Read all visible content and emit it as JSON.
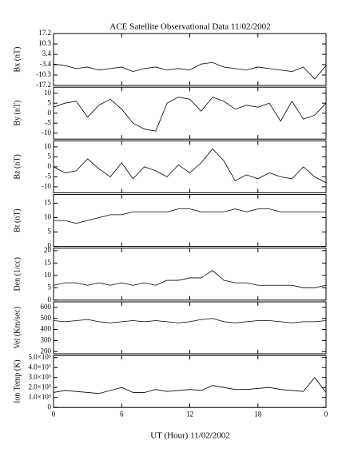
{
  "chart_data": [
    {
      "type": "line",
      "title": "ACE Satellite Observational Data   11/02/2002",
      "ylabel": "Bx (nT)",
      "color": "#000000",
      "xlim": [
        0,
        24
      ],
      "x": [
        0,
        1,
        2,
        3,
        4,
        5,
        6,
        7,
        8,
        9,
        10,
        11,
        12,
        13,
        14,
        15,
        16,
        17,
        18,
        19,
        20,
        21,
        22,
        23,
        24
      ],
      "series": [
        {
          "values": [
            -3,
            -4,
            -6,
            -5,
            -7,
            -6,
            -5,
            -8,
            -6,
            -5,
            -7,
            -6,
            -7,
            -3,
            -2,
            -5,
            -6,
            -7,
            -5,
            -6,
            -7,
            -8,
            -5,
            -13,
            -4
          ]
        }
      ],
      "ylim": [
        -17.2,
        17.2
      ],
      "yticks": [
        -17.2,
        -10.3,
        -3.4,
        3.4,
        10.3,
        17.2
      ]
    },
    {
      "type": "line",
      "ylabel": "By (nT)",
      "color": "#000000",
      "xlim": [
        0,
        24
      ],
      "x": [
        0,
        1,
        2,
        3,
        4,
        5,
        6,
        7,
        8,
        9,
        10,
        11,
        12,
        13,
        14,
        15,
        16,
        17,
        18,
        19,
        20,
        21,
        22,
        23,
        24
      ],
      "series": [
        {
          "values": [
            3,
            5,
            6,
            -2,
            4,
            7,
            2,
            -5,
            -8,
            -9,
            5,
            8,
            7,
            1,
            8,
            6,
            2,
            4,
            3,
            5,
            -4,
            6,
            -3,
            -1,
            5
          ]
        }
      ],
      "ylim": [
        -13,
        13
      ],
      "yticks": [
        -10,
        -5,
        0,
        5,
        10
      ]
    },
    {
      "type": "line",
      "ylabel": "Bz (nT)",
      "color": "#000000",
      "xlim": [
        0,
        24
      ],
      "x": [
        0,
        1,
        2,
        3,
        4,
        5,
        6,
        7,
        8,
        9,
        10,
        11,
        12,
        13,
        14,
        15,
        16,
        17,
        18,
        19,
        20,
        21,
        22,
        23,
        24
      ],
      "series": [
        {
          "values": [
            0,
            -3,
            -2,
            4,
            -1,
            -5,
            2,
            -6,
            0,
            -2,
            -5,
            1,
            -3,
            2,
            9,
            3,
            -7,
            -4,
            -6,
            -3,
            -5,
            -6,
            0,
            -5,
            -8
          ]
        }
      ],
      "ylim": [
        -13,
        13
      ],
      "yticks": [
        -10,
        -5,
        0,
        5,
        10
      ]
    },
    {
      "type": "line",
      "ylabel": "Bt (nT)",
      "color": "#000000",
      "xlim": [
        0,
        24
      ],
      "x": [
        0,
        1,
        2,
        3,
        4,
        5,
        6,
        7,
        8,
        9,
        10,
        11,
        12,
        13,
        14,
        15,
        16,
        17,
        18,
        19,
        20,
        21,
        22,
        23,
        24
      ],
      "series": [
        {
          "values": [
            9,
            9,
            8,
            9,
            10,
            11,
            11,
            12,
            12,
            12,
            12,
            13,
            13,
            12,
            12,
            12,
            13,
            12,
            13,
            13,
            12,
            12,
            12,
            12,
            12
          ]
        }
      ],
      "ylim": [
        0,
        18
      ],
      "yticks": [
        0,
        5,
        10,
        15
      ]
    },
    {
      "type": "line",
      "ylabel": "Den (1/cc)",
      "color": "#000000",
      "xlim": [
        0,
        24
      ],
      "x": [
        0,
        1,
        2,
        3,
        4,
        5,
        6,
        7,
        8,
        9,
        10,
        11,
        12,
        13,
        14,
        15,
        16,
        17,
        18,
        19,
        20,
        21,
        22,
        23,
        24
      ],
      "series": [
        {
          "values": [
            6,
            7,
            7,
            6,
            7,
            6,
            7,
            6,
            7,
            6,
            8,
            8,
            9,
            9,
            12,
            8,
            7,
            7,
            6,
            6,
            6,
            6,
            5,
            5,
            6
          ]
        }
      ],
      "ylim": [
        0,
        21
      ],
      "yticks": [
        0,
        5,
        10,
        15,
        20
      ]
    },
    {
      "type": "line",
      "ylabel": "Vel (Km/sec)",
      "color": "#000000",
      "xlim": [
        0,
        24
      ],
      "x": [
        0,
        1,
        2,
        3,
        4,
        5,
        6,
        7,
        8,
        9,
        10,
        11,
        12,
        13,
        14,
        15,
        16,
        17,
        18,
        19,
        20,
        21,
        22,
        23,
        24
      ],
      "series": [
        {
          "values": [
            480,
            470,
            480,
            490,
            470,
            460,
            470,
            480,
            470,
            480,
            470,
            460,
            470,
            490,
            500,
            470,
            460,
            470,
            480,
            480,
            470,
            460,
            470,
            470,
            480
          ]
        }
      ],
      "ylim": [
        180,
        650
      ],
      "yticks": [
        200,
        300,
        400,
        500,
        600
      ]
    },
    {
      "type": "line",
      "ylabel": "Ion Temp (K)",
      "xlabel": "UT (Hour)   11/02/2002",
      "color": "#000000",
      "xlim": [
        0,
        24
      ],
      "x": [
        0,
        1,
        2,
        3,
        4,
        5,
        6,
        7,
        8,
        9,
        10,
        11,
        12,
        13,
        14,
        15,
        16,
        17,
        18,
        19,
        20,
        21,
        22,
        23,
        24
      ],
      "series": [
        {
          "values": [
            150000,
            170000,
            160000,
            150000,
            140000,
            170000,
            200000,
            150000,
            150000,
            180000,
            160000,
            170000,
            180000,
            170000,
            220000,
            200000,
            180000,
            180000,
            190000,
            200000,
            180000,
            170000,
            160000,
            300000,
            150000
          ]
        }
      ],
      "ylim": [
        0,
        520000
      ],
      "yticks": [
        0,
        {
          "value": 100000,
          "label": "1.0×10⁵"
        },
        {
          "value": 200000,
          "label": "2.0×10⁵"
        },
        {
          "value": 300000,
          "label": "3.0×10⁵"
        },
        {
          "value": 400000,
          "label": "4.0×10⁵"
        },
        {
          "value": 500000,
          "label": "5.0×10⁵"
        }
      ],
      "xticks": [
        0,
        6,
        12,
        18,
        {
          "value": 24,
          "label": "0"
        }
      ]
    }
  ]
}
